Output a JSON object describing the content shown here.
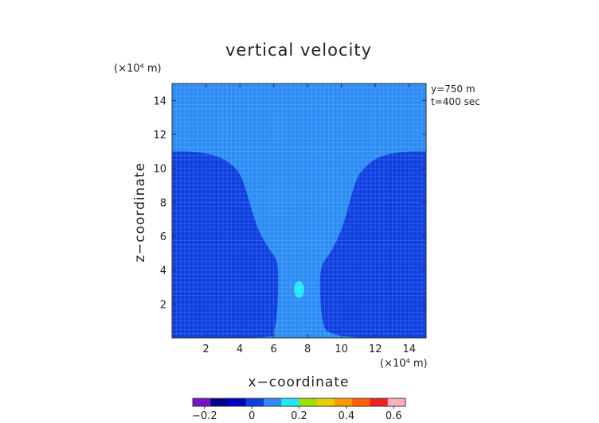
{
  "chart_data": {
    "type": "heatmap",
    "title": "vertical velocity",
    "xlabel": "x−coordinate",
    "ylabel": "z−coordinate",
    "x_unit": "(×10⁴ m)",
    "y_unit": "(×10⁴ m)",
    "xlim": [
      0,
      15
    ],
    "ylim": [
      0,
      15
    ],
    "x_ticks": [
      "2",
      "4",
      "6",
      "8",
      "10",
      "12",
      "14"
    ],
    "x_tick_values": [
      2,
      4,
      6,
      8,
      10,
      12,
      14
    ],
    "y_ticks": [
      "2",
      "4",
      "6",
      "8",
      "10",
      "12",
      "14"
    ],
    "y_tick_values": [
      2,
      4,
      6,
      8,
      10,
      12,
      14
    ],
    "annotations": [
      "y=750 m",
      "t=400 sec"
    ],
    "grid": true,
    "regions": [
      {
        "name": "background",
        "level": 0.05,
        "color": "#2b8cf5"
      },
      {
        "name": "left-lobe",
        "level": -0.05,
        "color": "#0c3fe0",
        "boundary": [
          [
            0,
            11
          ],
          [
            1,
            11
          ],
          [
            2,
            10.9
          ],
          [
            3,
            10.6
          ],
          [
            3.8,
            10
          ],
          [
            4.2,
            9.3
          ],
          [
            4.8,
            7.2
          ],
          [
            5.2,
            6.1
          ],
          [
            5.9,
            5
          ],
          [
            6.2,
            4.6
          ],
          [
            6.3,
            3.6
          ],
          [
            6.2,
            1.2
          ],
          [
            6,
            0.3
          ],
          [
            6,
            0
          ],
          [
            0,
            0
          ]
        ]
      },
      {
        "name": "right-lobe",
        "level": -0.05,
        "color": "#0c3fe0",
        "boundary": [
          [
            15,
            11
          ],
          [
            14,
            11
          ],
          [
            13,
            10.9
          ],
          [
            12,
            10.6
          ],
          [
            11.2,
            9.9
          ],
          [
            10.8,
            9.2
          ],
          [
            10.3,
            7.3
          ],
          [
            9.9,
            6.1
          ],
          [
            9.3,
            4.9
          ],
          [
            8.9,
            4.5
          ],
          [
            8.7,
            3.6
          ],
          [
            8.8,
            1.2
          ],
          [
            9.2,
            0
          ],
          [
            15,
            0
          ]
        ]
      },
      {
        "name": "updraft-bubble",
        "level": 0.2,
        "color": "#1ee8f5",
        "center": [
          7.5,
          2.85
        ],
        "radius": [
          0.3,
          0.5
        ]
      }
    ],
    "colorbar": {
      "ticks": [
        "−0.2",
        "0",
        "0.2",
        "0.4",
        "0.6"
      ],
      "tick_values": [
        -0.2,
        0,
        0.2,
        0.4,
        0.6
      ],
      "range": [
        -0.25,
        0.65
      ],
      "colors": [
        "#7a10c8",
        "#000090",
        "#0000c0",
        "#0c3fe0",
        "#2b8cf5",
        "#1ee8f5",
        "#9ae000",
        "#e8d000",
        "#ff9800",
        "#ff6000",
        "#f02020",
        "#ffb0c0"
      ]
    }
  }
}
